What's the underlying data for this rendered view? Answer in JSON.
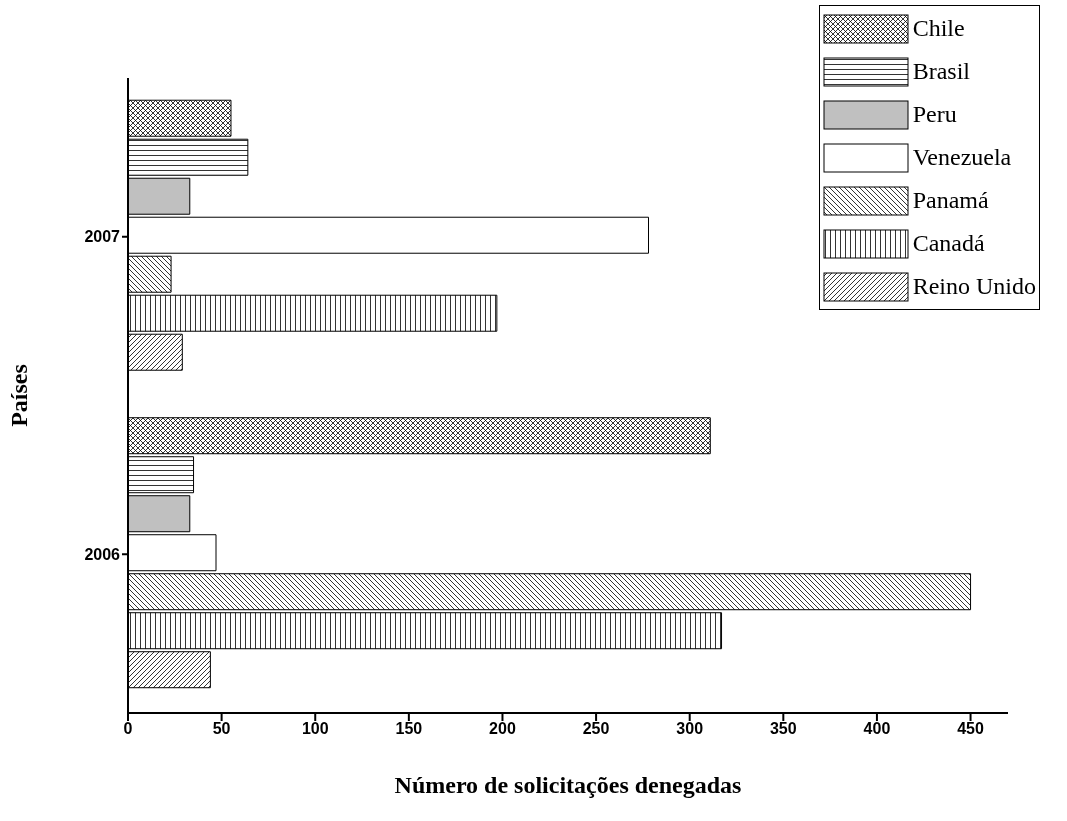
{
  "chart_data": {
    "type": "bar",
    "orientation": "horizontal",
    "xlabel": "Número de solicitações denegadas",
    "ylabel": "Países",
    "categories": [
      "2007",
      "2006"
    ],
    "series": [
      {
        "name": "Chile",
        "color": "#000000",
        "values": [
          55,
          311
        ]
      },
      {
        "name": "Brasil",
        "color": "#000000",
        "values": [
          64,
          35
        ]
      },
      {
        "name": "Peru",
        "color": "#c0c0c0",
        "values": [
          33,
          33
        ]
      },
      {
        "name": "Venezuela",
        "color": "#ffffff",
        "values": [
          278,
          47
        ]
      },
      {
        "name": "Panamá",
        "color": "#000000",
        "values": [
          23,
          450
        ]
      },
      {
        "name": "Canadá",
        "color": "#000000",
        "values": [
          197,
          317
        ]
      },
      {
        "name": "Reino Unido",
        "color": "#000000",
        "values": [
          29,
          44
        ]
      }
    ],
    "xlim": [
      0,
      470
    ],
    "xticks": [
      0,
      50,
      100,
      150,
      200,
      250,
      300,
      350,
      400,
      450
    ],
    "grid": false,
    "legend": "top right"
  }
}
